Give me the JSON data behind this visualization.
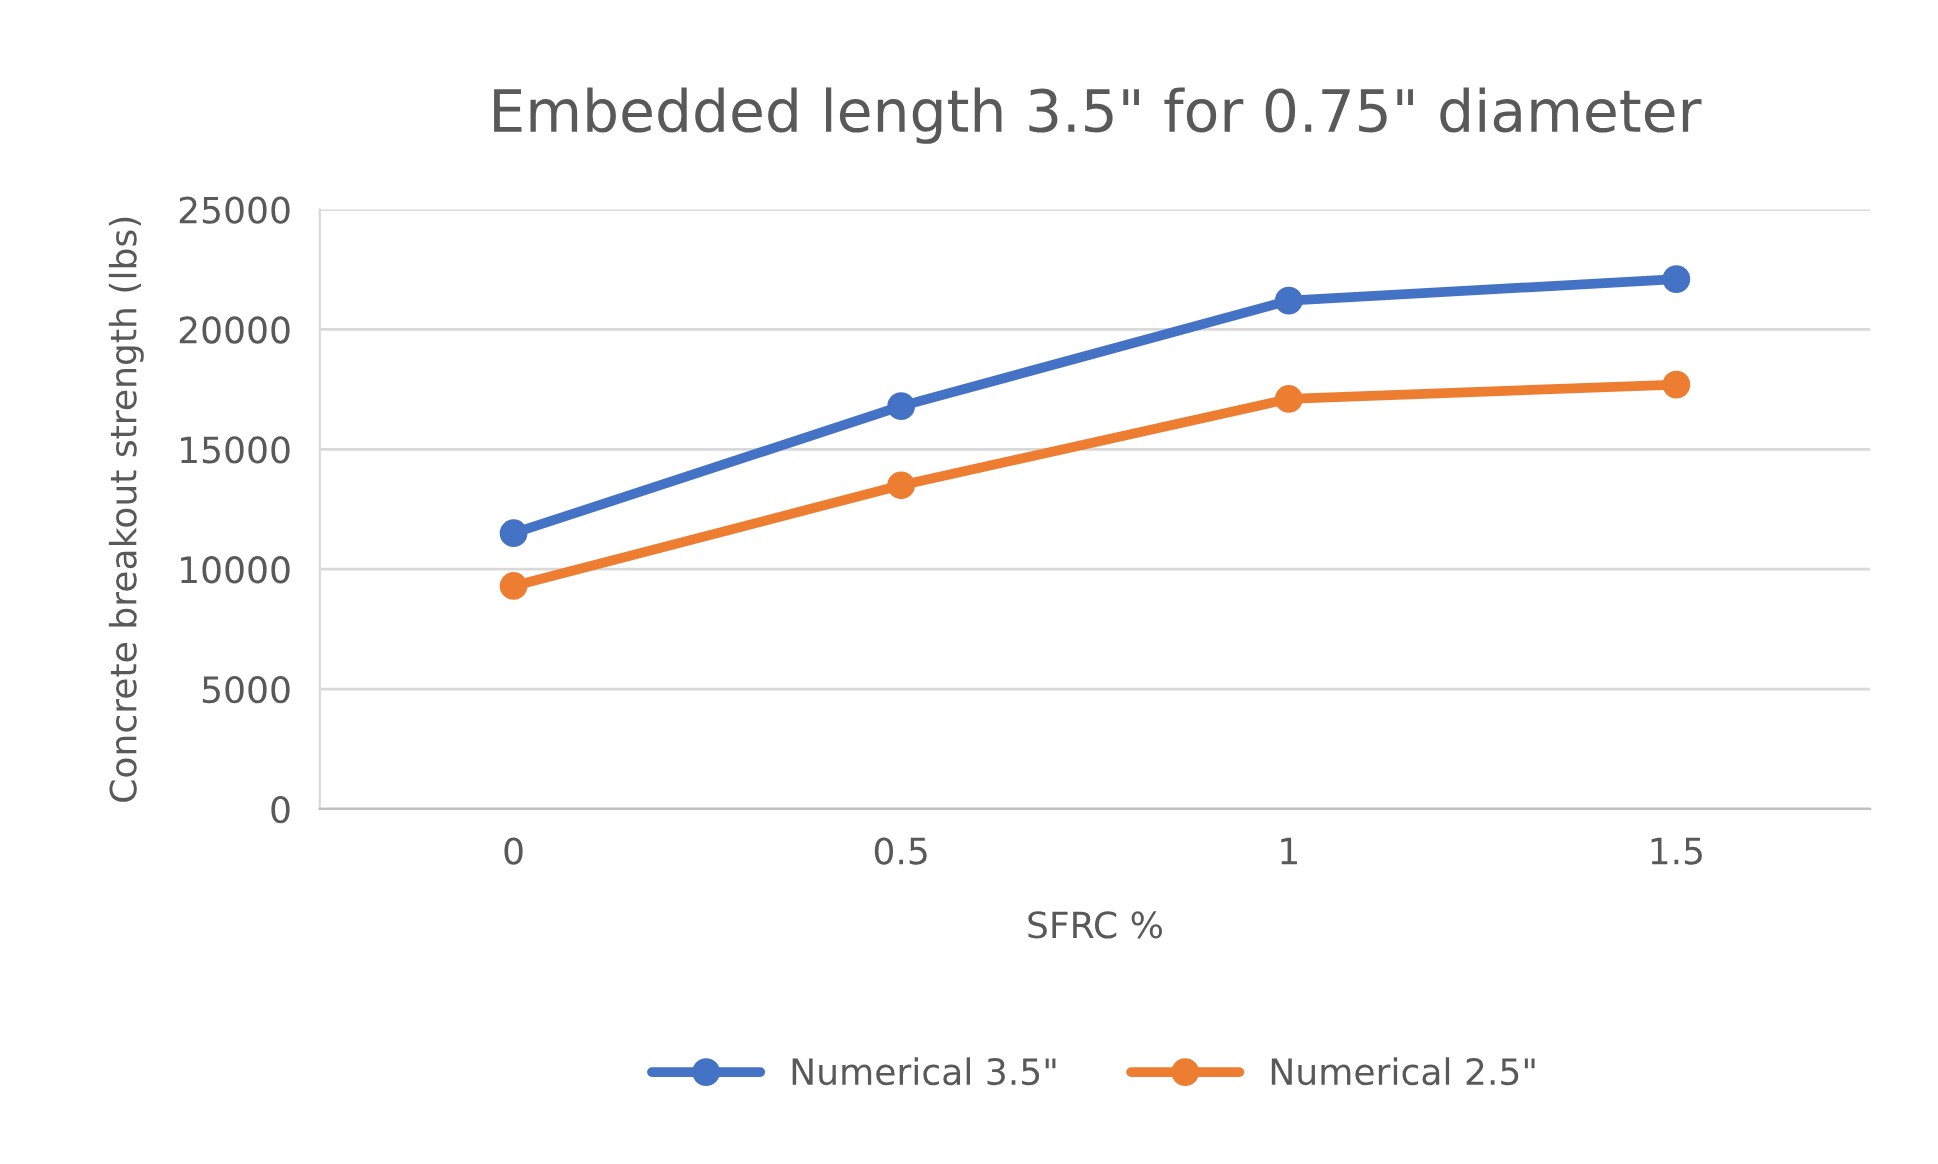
{
  "chart_data": {
    "type": "line",
    "title": "Embedded length 3.5\" for 0.75\" diameter",
    "xlabel": "SFRC %",
    "ylabel": "Concrete breakout strength (lbs)",
    "categories": [
      "0",
      "0.5",
      "1",
      "1.5"
    ],
    "series": [
      {
        "name": "Numerical 3.5\"",
        "color": "#4472c4",
        "values": [
          11500,
          16800,
          21200,
          22100
        ]
      },
      {
        "name": "Numerical 2.5\"",
        "color": "#ed7d31",
        "values": [
          9300,
          13500,
          17100,
          17700
        ]
      }
    ],
    "ylim": [
      0,
      25000
    ],
    "yticks": [
      0,
      5000,
      10000,
      15000,
      20000,
      25000
    ],
    "grid": "y",
    "legend": "bottom",
    "marker": "circle",
    "line_style": "solid"
  }
}
